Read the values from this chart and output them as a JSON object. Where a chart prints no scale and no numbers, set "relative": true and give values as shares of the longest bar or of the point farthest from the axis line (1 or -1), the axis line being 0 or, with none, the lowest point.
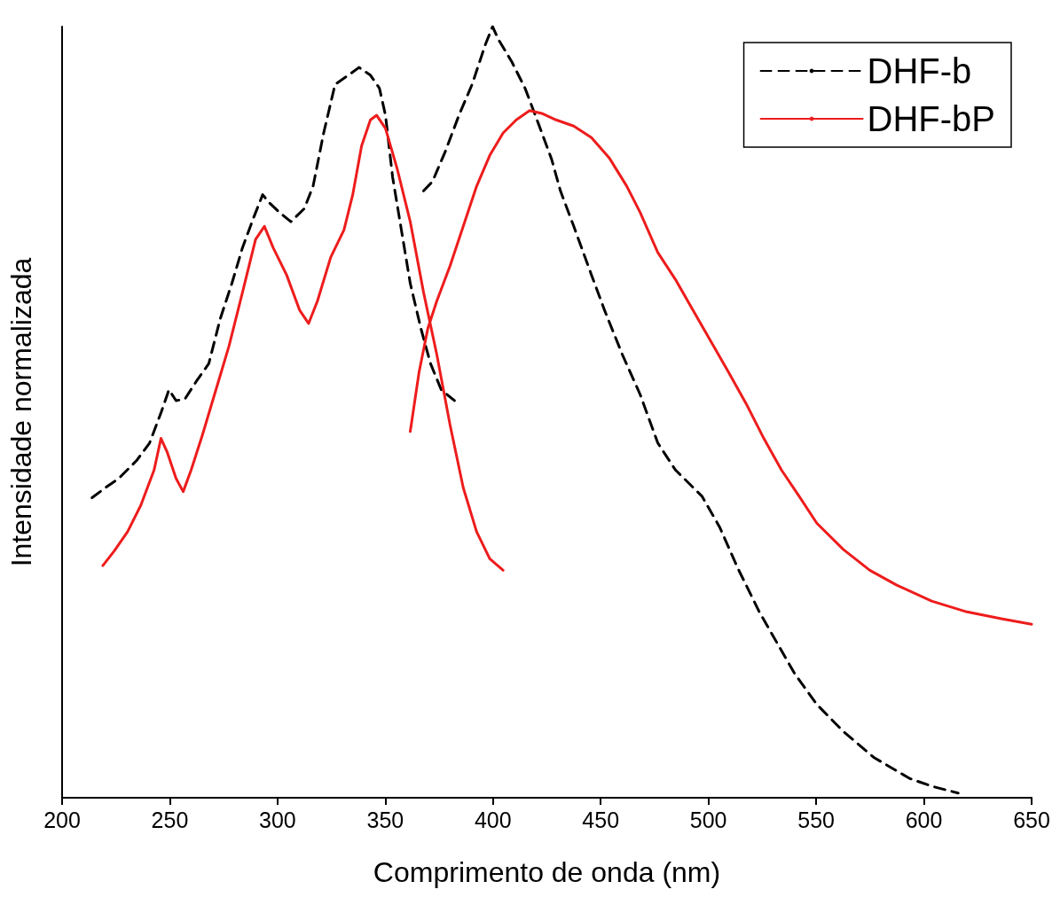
{
  "chart_data": {
    "type": "line",
    "xlabel": "Comprimento de onda (nm)",
    "ylabel": "Intensidade normalizada",
    "relative": true,
    "xlim": [
      200,
      650
    ],
    "xticks": [
      200,
      250,
      300,
      350,
      400,
      450,
      500,
      550,
      600,
      650
    ],
    "grid": false,
    "legend": "top right",
    "marker": "none",
    "series": [
      {
        "name": "DHF-b",
        "color": "#000000",
        "line_style": "dashed",
        "x": [
          213.9,
          220.1,
          226.3,
          234.5,
          240.6,
          246.0,
          249.6,
          252.9,
          257.0,
          262.3,
          268.1,
          273.4,
          278.8,
          283.7,
          289.0,
          293.1,
          296.0,
          300.9,
          306.2,
          312.4,
          316.5,
          321.4,
          326.7,
          332.9,
          337.8,
          343.1,
          347.3,
          350.1,
          353.4,
          357.5,
          361.6,
          366.5,
          371.0,
          376.0,
          382.1
        ],
        "values": [
          0.389,
          0.402,
          0.414,
          0.437,
          0.46,
          0.5,
          0.529,
          0.515,
          0.517,
          0.54,
          0.563,
          0.621,
          0.667,
          0.713,
          0.753,
          0.782,
          0.772,
          0.759,
          0.747,
          0.764,
          0.793,
          0.862,
          0.925,
          0.937,
          0.947,
          0.937,
          0.92,
          0.885,
          0.805,
          0.736,
          0.667,
          0.609,
          0.563,
          0.529,
          0.515
        ]
      },
      {
        "color": "#000000",
        "line_style": "dashed",
        "x": [
          367.8,
          371.9,
          378.0,
          384.2,
          390.3,
          396.5,
          399.8,
          402.6,
          408.8,
          414.9,
          421.1,
          427.2,
          431.3,
          437.5,
          445.7,
          451.8,
          460.0,
          468.3,
          476.5,
          484.7,
          497.0,
          505.2,
          513.4,
          523.6,
          531.8,
          540.0,
          550.3,
          562.6,
          576.9,
          593.4,
          603.6,
          615.9
        ],
        "values": [
          0.787,
          0.799,
          0.839,
          0.885,
          0.925,
          0.977,
          1.0,
          0.983,
          0.954,
          0.92,
          0.874,
          0.828,
          0.787,
          0.741,
          0.678,
          0.632,
          0.575,
          0.523,
          0.46,
          0.425,
          0.391,
          0.351,
          0.299,
          0.241,
          0.201,
          0.161,
          0.121,
          0.086,
          0.052,
          0.025,
          0.015,
          0.006
        ]
      },
      {
        "name": "DHF-bP",
        "color": "#ee1c1c",
        "line_style": "solid",
        "x": [
          218.9,
          224.2,
          230.4,
          236.5,
          242.7,
          245.9,
          248.8,
          252.9,
          256.2,
          259.9,
          265.2,
          271.4,
          277.5,
          283.7,
          289.8,
          293.9,
          298.0,
          304.2,
          310.3,
          314.4,
          318.5,
          324.7,
          330.8,
          334.9,
          339.0,
          343.1,
          346.0,
          350.1,
          355.5,
          361.6,
          367.8,
          373.9,
          380.1,
          386.2,
          392.4,
          398.5,
          404.7
        ],
        "values": [
          0.301,
          0.32,
          0.345,
          0.379,
          0.425,
          0.466,
          0.448,
          0.414,
          0.397,
          0.425,
          0.471,
          0.529,
          0.586,
          0.655,
          0.724,
          0.741,
          0.713,
          0.678,
          0.632,
          0.615,
          0.644,
          0.701,
          0.736,
          0.782,
          0.845,
          0.879,
          0.885,
          0.868,
          0.816,
          0.747,
          0.655,
          0.575,
          0.483,
          0.402,
          0.345,
          0.31,
          0.295
        ]
      },
      {
        "color": "#ee1c1c",
        "line_style": "solid",
        "x": [
          361.6,
          365.7,
          369.8,
          373.9,
          380.1,
          386.2,
          392.4,
          398.5,
          404.7,
          410.8,
          417.0,
          423.1,
          429.3,
          437.5,
          445.7,
          453.9,
          462.1,
          468.3,
          476.5,
          484.7,
          492.9,
          501.1,
          509.3,
          517.5,
          525.7,
          533.9,
          542.1,
          550.3,
          562.6,
          574.9,
          587.2,
          603.6,
          620.0,
          636.4,
          650.0
        ],
        "values": [
          0.475,
          0.552,
          0.609,
          0.644,
          0.69,
          0.741,
          0.793,
          0.833,
          0.862,
          0.879,
          0.891,
          0.887,
          0.879,
          0.871,
          0.856,
          0.83,
          0.793,
          0.759,
          0.707,
          0.672,
          0.632,
          0.592,
          0.552,
          0.511,
          0.466,
          0.425,
          0.391,
          0.356,
          0.322,
          0.295,
          0.276,
          0.255,
          0.241,
          0.232,
          0.225
        ]
      }
    ]
  }
}
